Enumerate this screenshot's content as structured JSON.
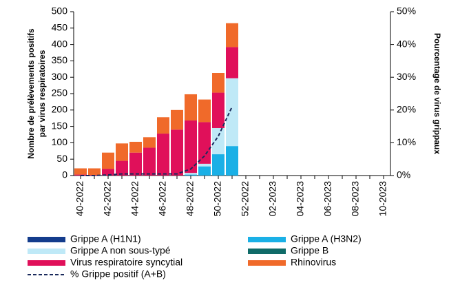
{
  "chart_data": {
    "type": "bar",
    "stacked": true,
    "ylabel": [
      "Nombre de prélèvements positifs",
      "par virus respiratoires"
    ],
    "y2label": "Pourcentage de virus grippaux",
    "categories": [
      "40-2022",
      null,
      "42-2022",
      null,
      "44-2022",
      null,
      "46-2022",
      null,
      "48-2022",
      null,
      "50-2022",
      null,
      "52-2022",
      null,
      "02-2023",
      null,
      "04-2023",
      null,
      "06-2023",
      null,
      "08-2023",
      null,
      "10-2023"
    ],
    "series": [
      {
        "name": "Grippe A (H1N1)",
        "color": "#143c8c",
        "values": [
          0,
          0,
          0,
          0,
          0,
          0,
          0,
          0,
          0,
          0,
          0,
          0,
          null,
          null,
          null,
          null,
          null,
          null,
          null,
          null,
          null,
          null,
          null
        ]
      },
      {
        "name": "Grippe A (H3N2)",
        "color": "#1ab0e6",
        "values": [
          0,
          0,
          0,
          0,
          0,
          0,
          0,
          0,
          3,
          28,
          65,
          90,
          null,
          null,
          null,
          null,
          null,
          null,
          null,
          null,
          null,
          null,
          null
        ]
      },
      {
        "name": "Grippe A non sous-typé",
        "color": "#bfe9f7",
        "values": [
          0,
          0,
          0,
          0,
          0,
          0,
          0,
          0,
          5,
          8,
          80,
          207,
          null,
          null,
          null,
          null,
          null,
          null,
          null,
          null,
          null,
          null,
          null
        ]
      },
      {
        "name": "Grippe B",
        "color": "#0f6b68",
        "values": [
          0,
          0,
          0,
          0,
          0,
          0,
          0,
          0,
          0,
          0,
          0,
          0,
          null,
          null,
          null,
          null,
          null,
          null,
          null,
          null,
          null,
          null,
          null
        ]
      },
      {
        "name": "Virus respiratoire syncytial",
        "color": "#e0105a",
        "values": [
          3,
          2,
          20,
          45,
          70,
          85,
          128,
          140,
          160,
          127,
          108,
          95,
          null,
          null,
          null,
          null,
          null,
          null,
          null,
          null,
          null,
          null,
          null
        ]
      },
      {
        "name": "Rhinovirus",
        "color": "#f06a2a",
        "values": [
          19,
          20,
          50,
          53,
          33,
          32,
          50,
          60,
          80,
          69,
          60,
          73,
          null,
          null,
          null,
          null,
          null,
          null,
          null,
          null,
          null,
          null,
          null
        ]
      },
      {
        "name": "% Grippe positif (A+B)",
        "color": "#1a2a5c",
        "type": "line",
        "dashed": true,
        "axis": "y2",
        "values": [
          0,
          0,
          0.2,
          0.5,
          0.5,
          0.5,
          0.5,
          0.5,
          2,
          6,
          12,
          21,
          null,
          null,
          null,
          null,
          null,
          null,
          null,
          null,
          null,
          null,
          null
        ]
      }
    ],
    "ylim": [
      0,
      500
    ],
    "yticks": [
      0,
      50,
      100,
      150,
      200,
      250,
      300,
      350,
      400,
      450,
      500
    ],
    "y2lim": [
      0,
      50
    ],
    "y2ticks": [
      {
        "value": 0,
        "label": "0%"
      },
      {
        "value": 10,
        "label": "10%"
      },
      {
        "value": 20,
        "label": "20%"
      },
      {
        "value": 30,
        "label": "30%"
      },
      {
        "value": 40,
        "label": "40%"
      },
      {
        "value": 50,
        "label": "50%"
      }
    ],
    "grid": false
  }
}
